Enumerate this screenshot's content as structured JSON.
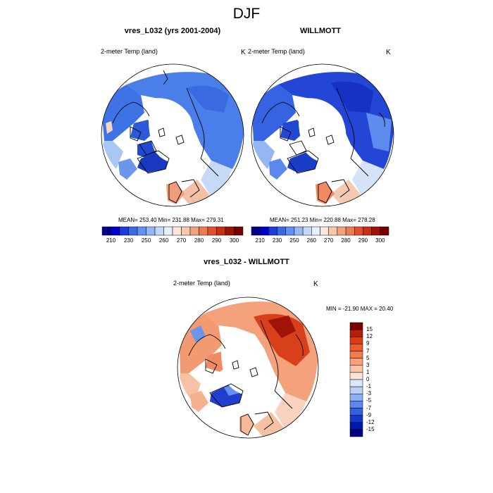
{
  "figure": {
    "title": "DJF"
  },
  "panels": {
    "model": {
      "title": "vres_L032 (yrs 2001-2004)",
      "variable": "2-meter Temp (land)",
      "units": "K",
      "stats": "MEAN= 253.40  Min= 231.88  Max= 279.31"
    },
    "obs": {
      "title": "WILLMOTT",
      "variable": "2-meter Temp (land)",
      "units": "K",
      "stats": "MEAN= 251.23  Min= 220.88  Max= 278.28"
    },
    "diff": {
      "title": "vres_L032 - WILLMOTT",
      "variable": "2-meter Temp (land)",
      "units": "K",
      "stats": "MIN = -21.90 MAX =  20.40"
    }
  },
  "colorbars": {
    "abs_labels": [
      "210",
      "230",
      "250",
      "260",
      "270",
      "280",
      "290",
      "300"
    ],
    "abs_colors": [
      "#00008b",
      "#0000c8",
      "#1e3cdc",
      "#3c6ae6",
      "#6490f0",
      "#96b6f5",
      "#c3d7f7",
      "#e6effa",
      "#fae6dc",
      "#f8c8aa",
      "#f4a27c",
      "#ee7a52",
      "#e4502c",
      "#c83214",
      "#a01408",
      "#780000"
    ],
    "diff_labels": [
      "15",
      "12",
      "9",
      "7",
      "5",
      "3",
      "1",
      "0",
      "-1",
      "-3",
      "-5",
      "-7",
      "-9",
      "-12",
      "-15"
    ],
    "diff_colors": [
      "#780000",
      "#b41e0a",
      "#dc3c14",
      "#ee5a2a",
      "#f47c48",
      "#f8a07a",
      "#fac4a6",
      "#fbe3d3",
      "#dce8fa",
      "#b8d0f6",
      "#8cb0f2",
      "#5a88ec",
      "#3260e0",
      "#1438cc",
      "#0018a8",
      "#000080"
    ]
  }
}
